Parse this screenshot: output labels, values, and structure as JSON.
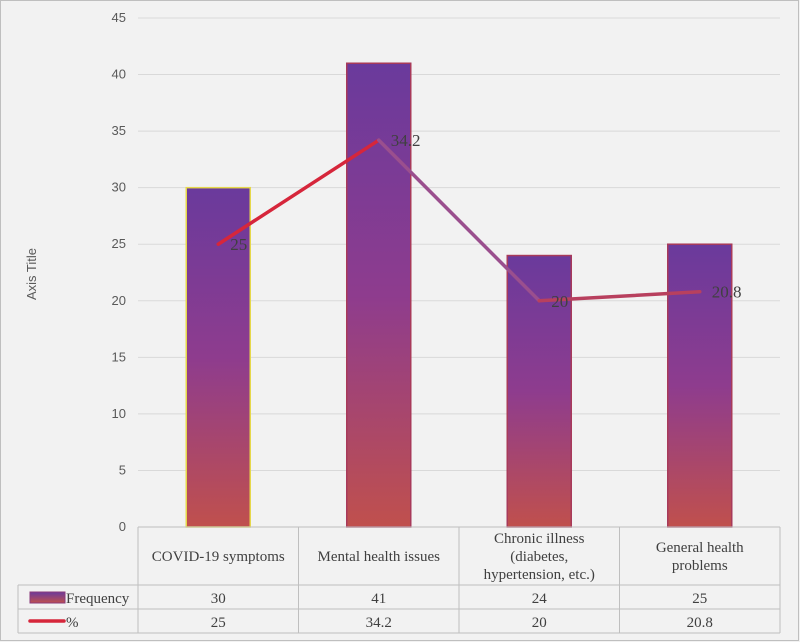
{
  "chart_data": {
    "type": "bar",
    "categories": [
      [
        "COVID-19 symptoms"
      ],
      [
        "Mental health issues"
      ],
      [
        "Chronic illness",
        "(diabetes,",
        "hypertension, etc.)"
      ],
      [
        "General health",
        "problems"
      ]
    ],
    "series": [
      {
        "name": "Frequency",
        "type": "bar",
        "values": [
          30,
          41,
          24,
          25
        ],
        "color_top": "#6a3a9c",
        "color_bottom": "#c0504d"
      },
      {
        "name": "%",
        "type": "line",
        "values": [
          25,
          34.2,
          20,
          20.8
        ],
        "color": "#d6263b",
        "data_labels": [
          "25",
          "34.2",
          "20",
          "20.8"
        ]
      }
    ],
    "table": [
      [
        "30",
        "41",
        "24",
        "25"
      ],
      [
        "25",
        "34.2",
        "20",
        "20.8"
      ]
    ],
    "ylabel": "Axis Title",
    "ylim": [
      0,
      45
    ],
    "yticks": [
      0,
      5,
      10,
      15,
      20,
      25,
      30,
      35,
      40,
      45
    ],
    "grid": true,
    "legend": "data-table"
  }
}
